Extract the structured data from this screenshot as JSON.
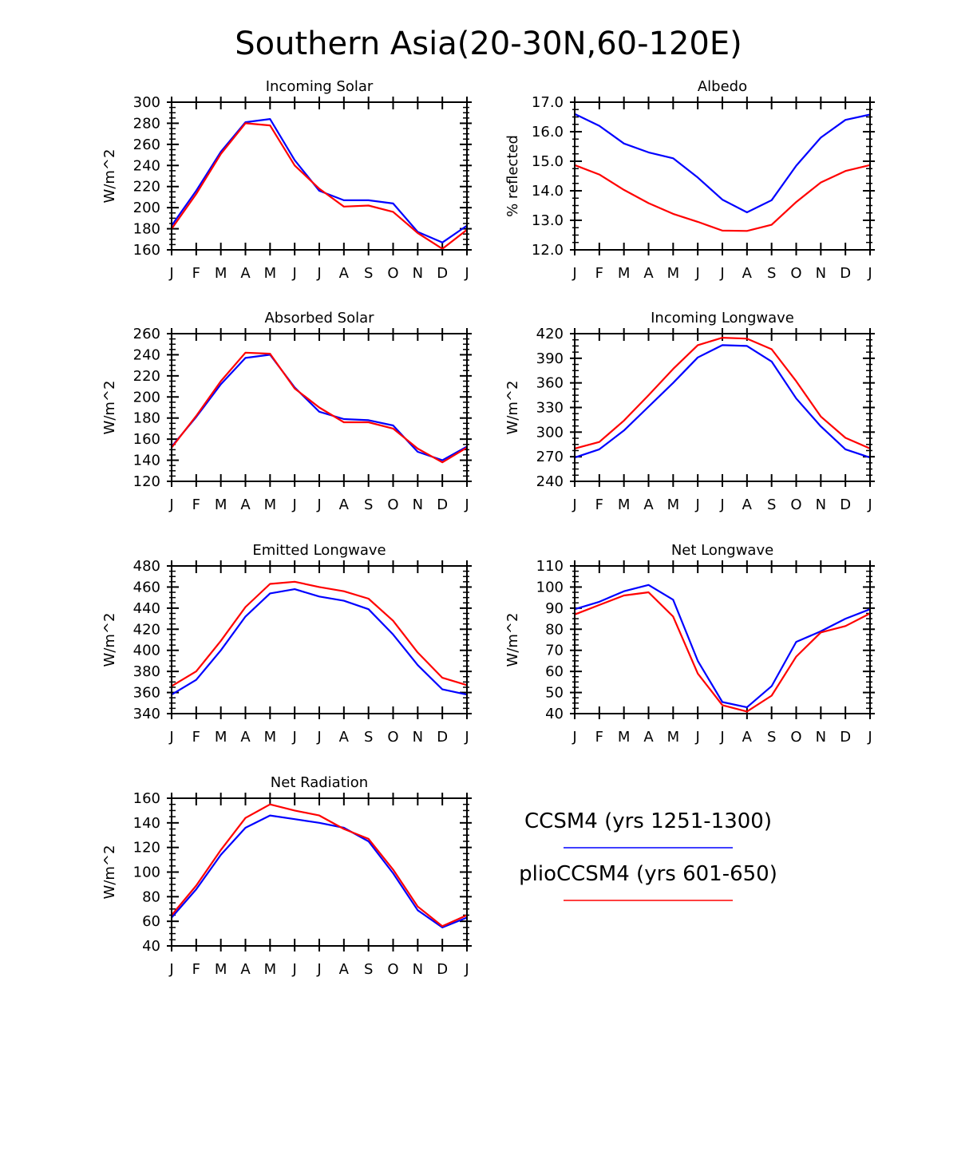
{
  "figure_title": "Southern Asia(20-30N,60-120E)",
  "colors": {
    "series_0": "#0000ff",
    "series_1": "#ff0000"
  },
  "legend": [
    {
      "label": "CCSM4 (yrs 1251-1300)"
    },
    {
      "label": "plioCCSM4 (yrs 601-650)"
    }
  ],
  "chart_data": [
    {
      "type": "line",
      "title": "Incoming Solar",
      "ylabel": "W/m^2",
      "categories": [
        "J",
        "F",
        "M",
        "A",
        "M",
        "J",
        "J",
        "A",
        "S",
        "O",
        "N",
        "D",
        "J"
      ],
      "ylim": [
        160,
        300
      ],
      "yticks": [
        "160",
        "180",
        "200",
        "220",
        "240",
        "260",
        "280",
        "300"
      ],
      "series": [
        {
          "name": "CCSM4 (yrs 1251-1300)",
          "values": [
            183,
            216,
            253,
            281,
            284,
            245,
            216,
            207,
            207,
            204,
            177,
            167,
            183
          ]
        },
        {
          "name": "plioCCSM4 (yrs 601-650)",
          "values": [
            180,
            213,
            251,
            280,
            278,
            240,
            218,
            201,
            202,
            196,
            176,
            161,
            179
          ]
        }
      ]
    },
    {
      "type": "line",
      "title": "Albedo",
      "ylabel": "% reflected",
      "categories": [
        "J",
        "F",
        "M",
        "A",
        "M",
        "J",
        "J",
        "A",
        "S",
        "O",
        "N",
        "D",
        "J"
      ],
      "ylim": [
        12.0,
        17.0
      ],
      "yticks": [
        "12.0",
        "13.0",
        "14.0",
        "15.0",
        "16.0",
        "17.0"
      ],
      "series": [
        {
          "name": "CCSM4 (yrs 1251-1300)",
          "values": [
            16.6,
            16.2,
            15.6,
            15.3,
            15.1,
            14.45,
            13.7,
            13.27,
            13.68,
            14.85,
            15.8,
            16.4,
            16.58
          ]
        },
        {
          "name": "plioCCSM4 (yrs 601-650)",
          "values": [
            14.87,
            14.55,
            14.03,
            13.58,
            13.22,
            12.95,
            12.65,
            12.64,
            12.85,
            13.62,
            14.28,
            14.67,
            14.87
          ]
        }
      ]
    },
    {
      "type": "line",
      "title": "Absorbed Solar",
      "ylabel": "W/m^2",
      "categories": [
        "J",
        "F",
        "M",
        "A",
        "M",
        "J",
        "J",
        "A",
        "S",
        "O",
        "N",
        "D",
        "J"
      ],
      "ylim": [
        120,
        260
      ],
      "yticks": [
        "120",
        "140",
        "160",
        "180",
        "200",
        "220",
        "240",
        "260"
      ],
      "series": [
        {
          "name": "CCSM4 (yrs 1251-1300)",
          "values": [
            153,
            181,
            212,
            237,
            240,
            209,
            186,
            179,
            178,
            173,
            148,
            140,
            153
          ]
        },
        {
          "name": "plioCCSM4 (yrs 601-650)",
          "values": [
            152,
            182,
            215,
            242,
            241,
            208,
            190,
            176,
            176,
            170,
            151,
            138,
            152
          ]
        }
      ]
    },
    {
      "type": "line",
      "title": "Incoming Longwave",
      "ylabel": "W/m^2",
      "categories": [
        "J",
        "F",
        "M",
        "A",
        "M",
        "J",
        "J",
        "A",
        "S",
        "O",
        "N",
        "D",
        "J"
      ],
      "ylim": [
        240,
        420
      ],
      "yticks": [
        "240",
        "270",
        "300",
        "330",
        "360",
        "390",
        "420"
      ],
      "series": [
        {
          "name": "CCSM4 (yrs 1251-1300)",
          "values": [
            269,
            279,
            302,
            331,
            360,
            391,
            406,
            405,
            386,
            341,
            307,
            279,
            269
          ]
        },
        {
          "name": "plioCCSM4 (yrs 601-650)",
          "values": [
            280,
            288,
            314,
            345,
            377,
            406,
            415,
            414,
            401,
            362,
            319,
            293,
            280
          ]
        }
      ]
    },
    {
      "type": "line",
      "title": "Emitted Longwave",
      "ylabel": "W/m^2",
      "categories": [
        "J",
        "F",
        "M",
        "A",
        "M",
        "J",
        "J",
        "A",
        "S",
        "O",
        "N",
        "D",
        "J"
      ],
      "ylim": [
        340,
        480
      ],
      "yticks": [
        "340",
        "360",
        "380",
        "400",
        "420",
        "440",
        "460",
        "480"
      ],
      "series": [
        {
          "name": "CCSM4 (yrs 1251-1300)",
          "values": [
            358,
            372,
            400,
            432,
            454,
            458,
            451,
            447,
            439,
            415,
            386,
            363,
            358
          ]
        },
        {
          "name": "plioCCSM4 (yrs 601-650)",
          "values": [
            366,
            380,
            409,
            441,
            463,
            465,
            460,
            456,
            449,
            428,
            398,
            374,
            367
          ]
        }
      ]
    },
    {
      "type": "line",
      "title": "Net Longwave",
      "ylabel": "W/m^2",
      "categories": [
        "J",
        "F",
        "M",
        "A",
        "M",
        "J",
        "J",
        "A",
        "S",
        "O",
        "N",
        "D",
        "J"
      ],
      "ylim": [
        40,
        110
      ],
      "yticks": [
        "40",
        "50",
        "60",
        "70",
        "80",
        "90",
        "100",
        "110"
      ],
      "series": [
        {
          "name": "CCSM4 (yrs 1251-1300)",
          "values": [
            89.5,
            93,
            98,
            101,
            94,
            65,
            45.5,
            43,
            53,
            74,
            79,
            85,
            89.5
          ]
        },
        {
          "name": "plioCCSM4 (yrs 601-650)",
          "values": [
            87,
            91.5,
            96,
            97.5,
            86,
            59,
            44,
            41,
            48.5,
            67,
            78.5,
            81.5,
            87.5
          ]
        }
      ]
    },
    {
      "type": "line",
      "title": "Net Radiation",
      "ylabel": "W/m^2",
      "categories": [
        "J",
        "F",
        "M",
        "A",
        "M",
        "J",
        "J",
        "A",
        "S",
        "O",
        "N",
        "D",
        "J"
      ],
      "ylim": [
        40,
        160
      ],
      "yticks": [
        "40",
        "60",
        "80",
        "100",
        "120",
        "140",
        "160"
      ],
      "series": [
        {
          "name": "CCSM4 (yrs 1251-1300)",
          "values": [
            63,
            86,
            114,
            136,
            146,
            143,
            140,
            136,
            125,
            99,
            69,
            55,
            63
          ]
        },
        {
          "name": "plioCCSM4 (yrs 601-650)",
          "values": [
            65,
            89,
            118,
            144,
            155,
            150,
            146,
            135,
            127,
            102,
            72,
            56,
            65
          ]
        }
      ]
    }
  ]
}
